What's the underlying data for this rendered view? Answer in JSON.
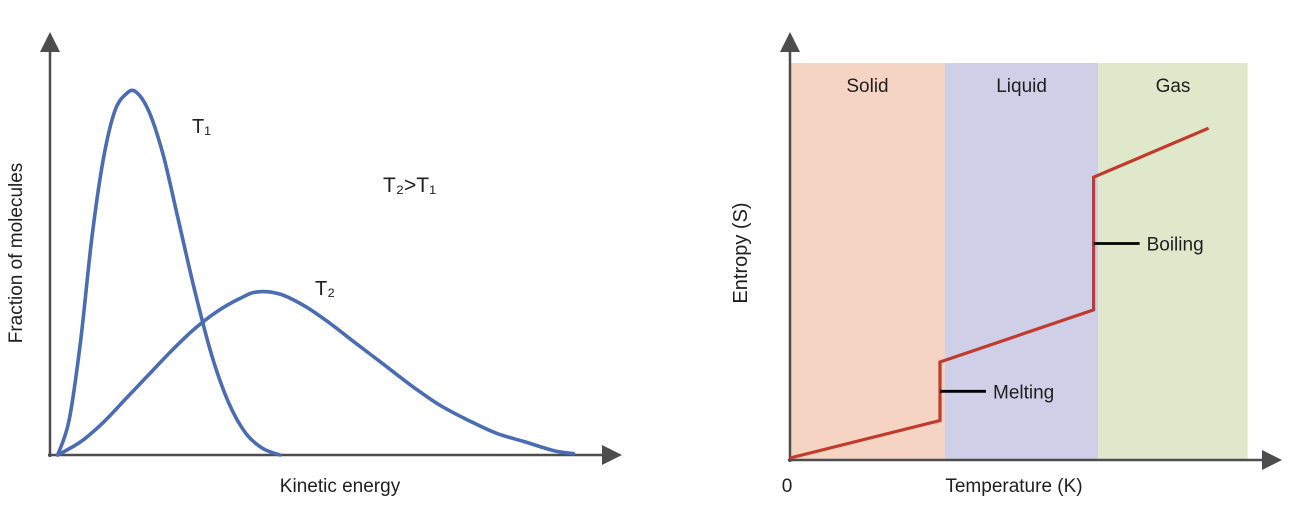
{
  "colors": {
    "distribution_curve": "#4a6cb3",
    "entropy_line": "#c13b2c",
    "axis": "#4d4d4d",
    "annotation_line": "#000000"
  },
  "chart_data": [
    {
      "type": "line",
      "title": "",
      "xlabel": "Kinetic energy",
      "ylabel": "Fraction of molecules",
      "annotation": "T₂>T₁",
      "legend": "none",
      "grid": false,
      "axis_ticks": "none (qualitative axes with arrowheads)",
      "units": "percent of axis span (no numeric ticks shown)",
      "series": [
        {
          "name": "T₁",
          "x": [
            1,
            3,
            5,
            7,
            9,
            11,
            13,
            14.7,
            17,
            19.5,
            22,
            25,
            28,
            31,
            34,
            37,
            40
          ],
          "y": [
            0,
            8,
            26,
            50,
            68,
            79,
            83,
            83.5,
            79,
            69,
            55,
            38,
            23,
            12,
            5,
            1.5,
            0
          ]
        },
        {
          "name": "T₂",
          "x": [
            1,
            5,
            9,
            13,
            17,
            21,
            25,
            29,
            33,
            36,
            40,
            44,
            48,
            53,
            58,
            63,
            68,
            73,
            78,
            83,
            88,
            91.5
          ],
          "y": [
            0,
            3,
            7.5,
            13,
            18.5,
            24,
            29,
            33,
            36,
            37.5,
            37,
            34.5,
            31,
            26,
            21,
            16,
            11.5,
            8,
            5,
            3,
            1,
            0.3
          ]
        }
      ]
    },
    {
      "type": "line",
      "title": "",
      "xlabel": "Temperature (K)",
      "ylabel": "Entropy (S)",
      "x_origin_label": "0",
      "legend": "none",
      "grid": false,
      "axis_ticks": "only 0 at origin",
      "units": "percent of axis span (no numeric ticks shown)",
      "regions": [
        {
          "label": "Solid",
          "x_range": [
            0,
            33.7
          ],
          "color": "#f6d4c4"
        },
        {
          "label": "Liquid",
          "x_range": [
            33.7,
            67
          ],
          "color": "#cfcfe7"
        },
        {
          "label": "Gas",
          "x_range": [
            67,
            99.5
          ],
          "color": "#e0e8cc"
        }
      ],
      "series": [
        {
          "name": "Entropy",
          "x": [
            0,
            32.6,
            32.6,
            66,
            66,
            91
          ],
          "y": [
            0.5,
            10,
            24.8,
            38,
            71.6,
            84
          ]
        }
      ],
      "annotations": [
        {
          "label": "Melting",
          "at_x": 32.6,
          "at_y": 17.4
        },
        {
          "label": "Boiling",
          "at_x": 66,
          "at_y": 54.8
        }
      ]
    }
  ]
}
